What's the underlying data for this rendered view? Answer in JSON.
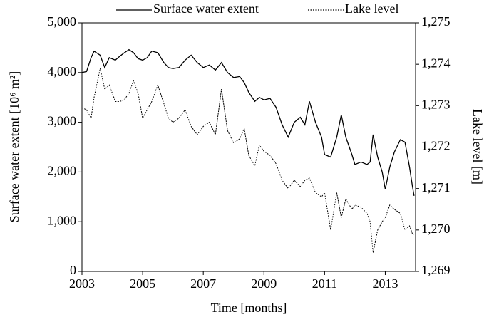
{
  "chart_data": {
    "type": "line",
    "xlabel": "Time [months]",
    "ylabel": "Surface water extent [10⁶ m²]",
    "y2label": "Lake level [m]",
    "x": [
      2003.0,
      2003.15,
      2003.3,
      2003.4,
      2003.6,
      2003.75,
      2003.9,
      2004.1,
      2004.25,
      2004.4,
      2004.55,
      2004.7,
      2004.85,
      2005.0,
      2005.15,
      2005.3,
      2005.5,
      2005.7,
      2005.85,
      2006.0,
      2006.2,
      2006.4,
      2006.6,
      2006.8,
      2007.0,
      2007.2,
      2007.4,
      2007.6,
      2007.8,
      2008.0,
      2008.2,
      2008.35,
      2008.5,
      2008.7,
      2008.85,
      2009.0,
      2009.2,
      2009.4,
      2009.6,
      2009.8,
      2010.0,
      2010.2,
      2010.35,
      2010.5,
      2010.7,
      2010.9,
      2011.0,
      2011.2,
      2011.4,
      2011.55,
      2011.7,
      2011.9,
      2012.0,
      2012.2,
      2012.4,
      2012.5,
      2012.6,
      2012.75,
      2012.9,
      2013.0,
      2013.15,
      2013.3,
      2013.5,
      2013.65,
      2013.8,
      2013.9,
      2013.95
    ],
    "series": [
      {
        "name": "Surface water extent",
        "color": "#000000",
        "dash": "solid",
        "values": [
          4000,
          4020,
          4300,
          4430,
          4350,
          4100,
          4300,
          4250,
          4330,
          4400,
          4460,
          4400,
          4280,
          4250,
          4300,
          4430,
          4400,
          4200,
          4100,
          4080,
          4100,
          4250,
          4350,
          4200,
          4100,
          4150,
          4050,
          4200,
          4000,
          3900,
          3920,
          3800,
          3600,
          3420,
          3500,
          3450,
          3480,
          3300,
          2950,
          2700,
          3000,
          3100,
          2950,
          3420,
          3000,
          2700,
          2350,
          2300,
          2700,
          3150,
          2700,
          2350,
          2150,
          2200,
          2150,
          2200,
          2750,
          2300,
          2000,
          1650,
          2100,
          2400,
          2650,
          2600,
          2100,
          1700,
          1520
        ]
      },
      {
        "name": "Lake level",
        "color": "#000000",
        "dash": "dashed",
        "axis": "y2",
        "values": [
          1272.95,
          1272.9,
          1272.7,
          1273.2,
          1273.9,
          1273.4,
          1273.5,
          1273.1,
          1273.1,
          1273.15,
          1273.3,
          1273.6,
          1273.3,
          1272.7,
          1272.9,
          1273.1,
          1273.5,
          1273.05,
          1272.7,
          1272.6,
          1272.7,
          1272.9,
          1272.5,
          1272.3,
          1272.5,
          1272.6,
          1272.3,
          1273.4,
          1272.4,
          1272.1,
          1272.2,
          1272.45,
          1271.8,
          1271.55,
          1272.05,
          1271.9,
          1271.8,
          1271.6,
          1271.2,
          1271.0,
          1271.2,
          1271.05,
          1271.2,
          1271.25,
          1270.9,
          1270.8,
          1270.9,
          1270.0,
          1270.9,
          1270.3,
          1270.75,
          1270.5,
          1270.6,
          1270.55,
          1270.4,
          1270.2,
          1269.45,
          1270.0,
          1270.2,
          1270.3,
          1270.6,
          1270.5,
          1270.4,
          1270.0,
          1270.1,
          1269.9,
          1269.9
        ]
      }
    ],
    "xlim": [
      2003,
      2014
    ],
    "xticks": [
      2003,
      2005,
      2007,
      2009,
      2011,
      2013
    ],
    "ylim": [
      0,
      5000
    ],
    "yticks": [
      0,
      {
        "value": 1000,
        "label": "1,000"
      },
      {
        "value": 2000,
        "label": "2,000"
      },
      {
        "value": 3000,
        "label": "3,000"
      },
      {
        "value": 4000,
        "label": "4,000"
      },
      {
        "value": 5000,
        "label": "5,000"
      }
    ],
    "y2lim": [
      1269,
      1275
    ],
    "y2ticks": [
      {
        "value": 1269,
        "label": "1,269"
      },
      {
        "value": 1270,
        "label": "1,270"
      },
      {
        "value": 1271,
        "label": "1,271"
      },
      {
        "value": 1272,
        "label": "1,272"
      },
      {
        "value": 1273,
        "label": "1,273"
      },
      {
        "value": 1274,
        "label": "1,274"
      },
      {
        "value": 1275,
        "label": "1,275"
      }
    ],
    "legend": "top"
  }
}
